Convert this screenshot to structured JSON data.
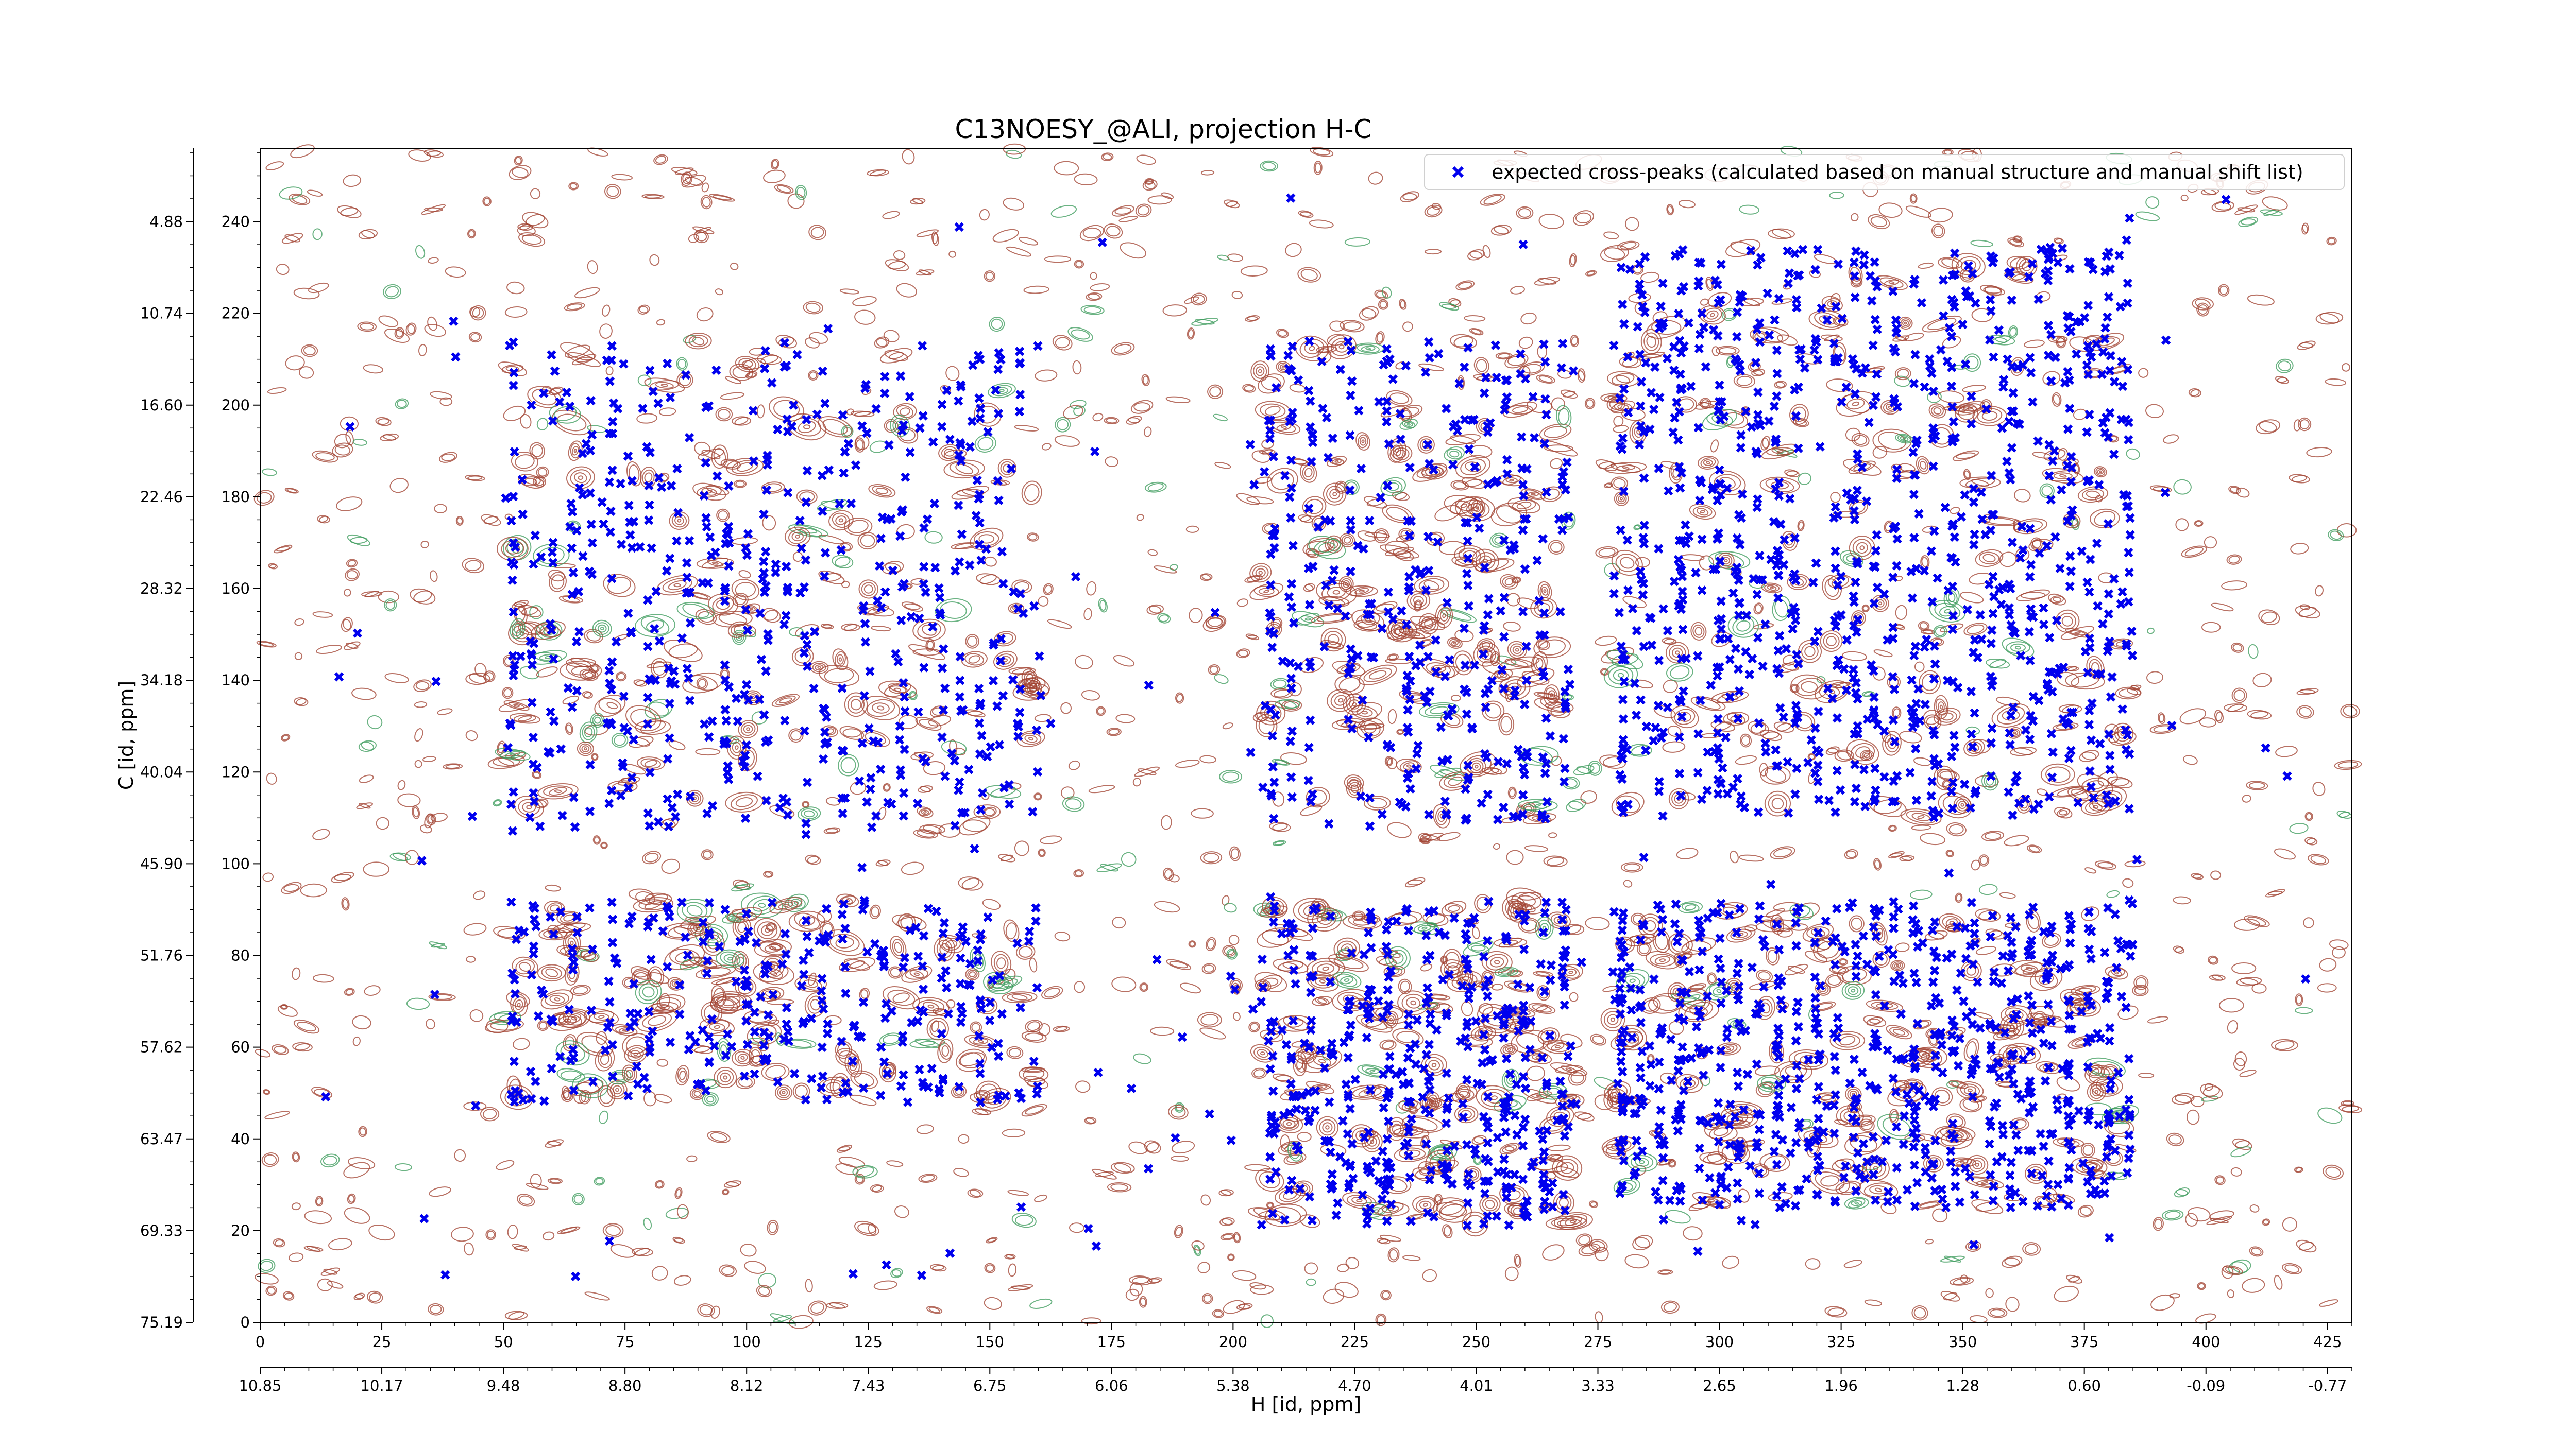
{
  "chart_data": {
    "type": "scatter",
    "title": "C13NOESY_@ALI, projection H-C",
    "xlabel": "H [id, ppm]",
    "ylabel": "C [id, ppm]",
    "xlim": [
      0,
      430
    ],
    "ylim": [
      0,
      256
    ],
    "x_ticks": [
      "0",
      "25",
      "50",
      "75",
      "100",
      "125",
      "150",
      "175",
      "200",
      "225",
      "250",
      "275",
      "300",
      "325",
      "350",
      "375",
      "400",
      "425"
    ],
    "x_ppm_ticks": [
      "10.85",
      "10.17",
      "9.48",
      "8.80",
      "8.12",
      "7.43",
      "6.75",
      "6.06",
      "5.38",
      "4.70",
      "4.01",
      "3.33",
      "2.65",
      "1.96",
      "1.28",
      "0.60",
      "-0.09",
      "-0.77"
    ],
    "y_ticks": [
      "0",
      "20",
      "40",
      "60",
      "80",
      "100",
      "120",
      "140",
      "160",
      "180",
      "200",
      "220",
      "240"
    ],
    "y_ppm_ticks": [
      "75.19",
      "69.33",
      "63.47",
      "57.62",
      "51.76",
      "45.90",
      "40.04",
      "34.18",
      "28.32",
      "22.46",
      "16.60",
      "10.74",
      "4.88"
    ],
    "legend": {
      "placement": "top-right",
      "entries": [
        "expected cross-peaks (calculated based on manual structure and manual shift list)"
      ]
    },
    "grid": false,
    "colors": {
      "markers": "#0000ee",
      "positive_contours": "#a0402f",
      "negative_contours": "#3a9a5a"
    },
    "series": [
      {
        "name": "expected cross-peaks (calculated based on manual structure and manual shift list)",
        "marker": "x-filled",
        "clusters": [
          {
            "x": [
              50,
              160
            ],
            "y": [
              108,
              214
            ],
            "count": 520
          },
          {
            "x": [
              50,
              160
            ],
            "y": [
              48,
              92
            ],
            "count": 300
          },
          {
            "x": [
              205,
              270
            ],
            "y": [
              108,
              214
            ],
            "count": 360
          },
          {
            "x": [
              205,
              270
            ],
            "y": [
              20,
              92
            ],
            "count": 420
          },
          {
            "x": [
              278,
              385
            ],
            "y": [
              110,
              235
            ],
            "count": 900
          },
          {
            "x": [
              278,
              385
            ],
            "y": [
              25,
              92
            ],
            "count": 700
          },
          {
            "x": [
              10,
              420
            ],
            "y": [
              10,
              250
            ],
            "count": 160
          }
        ]
      }
    ]
  }
}
